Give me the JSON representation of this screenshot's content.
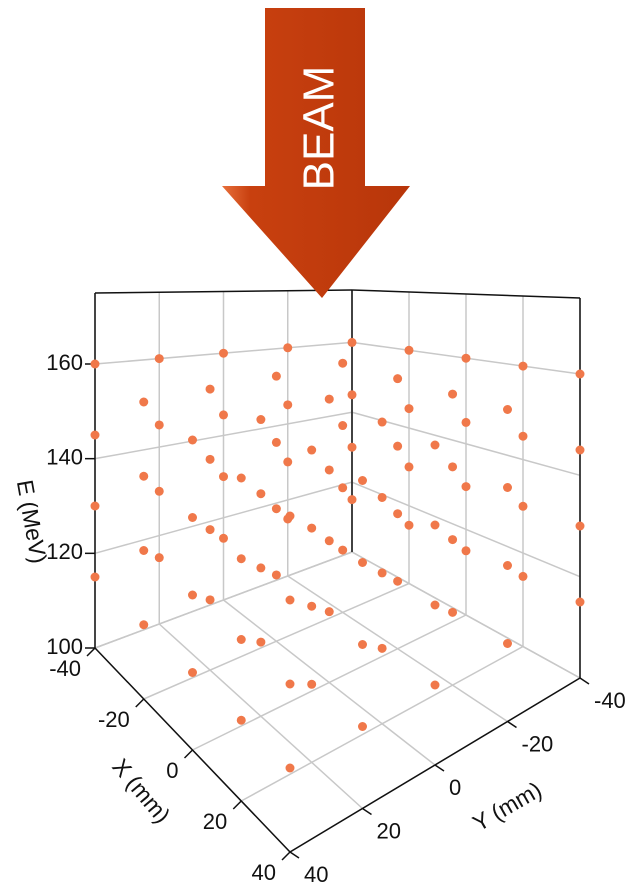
{
  "chart_data": {
    "type": "scatter3d",
    "annotation": "BEAM",
    "xlabel": "X (mm)",
    "ylabel": "Y (mm)",
    "zlabel": "E (MeV)",
    "color": "#f0784a",
    "grid": true,
    "xlim": [
      -40,
      40
    ],
    "ylim": [
      -40,
      40
    ],
    "zlim": [
      100,
      175
    ],
    "xticks": [
      -40,
      -20,
      0,
      20,
      40
    ],
    "yticks": [
      -40,
      -20,
      0,
      20,
      40
    ],
    "zticks": [
      100,
      120,
      140,
      160
    ],
    "x": [
      -40,
      -20,
      0,
      20,
      40,
      -40,
      -20,
      0,
      20,
      40,
      -40,
      -20,
      0,
      20,
      40,
      -40,
      -20,
      0,
      20,
      40,
      -40,
      -20,
      0,
      20,
      40,
      -40,
      -20,
      0,
      20,
      40,
      -40,
      -20,
      0,
      20,
      40,
      -40,
      -20,
      0,
      20,
      40,
      -40,
      -20,
      0,
      20,
      40,
      -40,
      -20,
      0,
      20,
      40,
      -40,
      -20,
      0,
      20,
      40,
      -40,
      -20,
      0,
      20,
      40,
      -40,
      -20,
      0,
      20,
      40,
      -40,
      -20,
      0,
      20,
      40,
      -40,
      -20,
      0,
      20,
      40,
      -40,
      -20,
      0,
      20,
      40,
      -40,
      -20,
      0,
      20,
      40,
      -40,
      -20,
      0,
      20,
      40,
      -40,
      -20,
      0,
      20,
      40,
      -40,
      -20,
      0,
      20,
      40
    ],
    "y": [
      -40,
      -40,
      -40,
      -40,
      -40,
      -20,
      -20,
      -20,
      -20,
      -20,
      0,
      0,
      0,
      0,
      0,
      20,
      20,
      20,
      20,
      20,
      40,
      40,
      40,
      40,
      40,
      -40,
      -40,
      -40,
      -40,
      -40,
      -20,
      -20,
      -20,
      -20,
      -20,
      0,
      0,
      0,
      0,
      0,
      20,
      20,
      20,
      20,
      20,
      40,
      40,
      40,
      40,
      40,
      -40,
      -40,
      -40,
      -40,
      -40,
      -20,
      -20,
      -20,
      -20,
      -20,
      0,
      0,
      0,
      0,
      0,
      20,
      20,
      20,
      20,
      20,
      40,
      40,
      40,
      40,
      40,
      -40,
      -40,
      -40,
      -40,
      -40,
      -20,
      -20,
      -20,
      -20,
      -20,
      0,
      0,
      0,
      0,
      0,
      20,
      20,
      20,
      20,
      20,
      40,
      40,
      40,
      40,
      40
    ],
    "z": [
      115,
      115,
      115,
      115,
      115,
      115,
      115,
      115,
      115,
      115,
      115,
      115,
      115,
      115,
      115,
      115,
      115,
      115,
      115,
      115,
      115,
      115,
      115,
      115,
      115,
      130,
      130,
      130,
      130,
      130,
      130,
      130,
      130,
      130,
      130,
      130,
      130,
      130,
      130,
      130,
      130,
      130,
      130,
      130,
      130,
      130,
      130,
      130,
      130,
      130,
      145,
      145,
      145,
      145,
      145,
      145,
      145,
      145,
      145,
      145,
      145,
      145,
      145,
      145,
      145,
      145,
      145,
      145,
      145,
      145,
      145,
      145,
      145,
      145,
      145,
      160,
      160,
      160,
      160,
      160,
      160,
      160,
      160,
      160,
      160,
      160,
      160,
      160,
      160,
      160,
      160,
      160,
      160,
      160,
      160,
      160,
      160,
      160,
      160,
      160
    ]
  }
}
